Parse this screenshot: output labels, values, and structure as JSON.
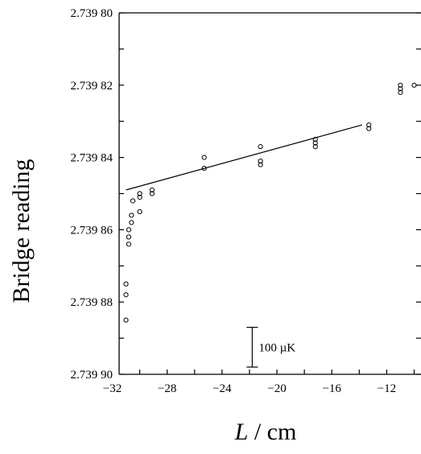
{
  "chart_data": {
    "type": "scatter",
    "xlabel_italic": "L",
    "xlabel_rest": " / cm",
    "ylabel": "Bridge reading",
    "xlim": [
      -31.5,
      -9.5
    ],
    "ylim": [
      2.7398,
      2.7399
    ],
    "y_inverted": true,
    "grid": false,
    "x_ticks": [
      {
        "value": -32,
        "label": "−32"
      },
      {
        "value": -28,
        "label": "−28"
      },
      {
        "value": -24,
        "label": "−24"
      },
      {
        "value": -20,
        "label": "−20"
      },
      {
        "value": -16,
        "label": "−16"
      },
      {
        "value": -12,
        "label": "−12"
      }
    ],
    "y_ticks": [
      {
        "value": 2.7398,
        "label": "2.739 80"
      },
      {
        "value": 2.73982,
        "label": "2.739 82"
      },
      {
        "value": 2.73984,
        "label": "2.739 84"
      },
      {
        "value": 2.73986,
        "label": "2.739 86"
      },
      {
        "value": 2.73988,
        "label": "2.739 88"
      },
      {
        "value": 2.7399,
        "label": "2.739 90"
      }
    ],
    "points": [
      {
        "x": -31.0,
        "y": 2.739875
      },
      {
        "x": -31.0,
        "y": 2.739878
      },
      {
        "x": -31.0,
        "y": 2.739885
      },
      {
        "x": -30.8,
        "y": 2.739864
      },
      {
        "x": -30.8,
        "y": 2.739862
      },
      {
        "x": -30.8,
        "y": 2.73986
      },
      {
        "x": -30.6,
        "y": 2.739858
      },
      {
        "x": -30.6,
        "y": 2.739856
      },
      {
        "x": -30.5,
        "y": 2.739852
      },
      {
        "x": -30.0,
        "y": 2.739855
      },
      {
        "x": -30.0,
        "y": 2.739851
      },
      {
        "x": -30.0,
        "y": 2.73985
      },
      {
        "x": -29.1,
        "y": 2.73985
      },
      {
        "x": -29.1,
        "y": 2.739849
      },
      {
        "x": -25.3,
        "y": 2.739843
      },
      {
        "x": -25.3,
        "y": 2.73984
      },
      {
        "x": -21.2,
        "y": 2.739842
      },
      {
        "x": -21.2,
        "y": 2.739841
      },
      {
        "x": -21.2,
        "y": 2.739837
      },
      {
        "x": -17.2,
        "y": 2.739837
      },
      {
        "x": -17.2,
        "y": 2.739836
      },
      {
        "x": -17.2,
        "y": 2.739835
      },
      {
        "x": -13.3,
        "y": 2.739832
      },
      {
        "x": -13.3,
        "y": 2.739831
      },
      {
        "x": -11.0,
        "y": 2.73982
      },
      {
        "x": -11.0,
        "y": 2.739821
      },
      {
        "x": -11.0,
        "y": 2.739822
      },
      {
        "x": -10.0,
        "y": 2.73982
      }
    ],
    "fit_line": {
      "x1": -31.0,
      "y1": 2.739849,
      "x2": -13.8,
      "y2": 2.739831
    },
    "scale_bar": {
      "x": -21.8,
      "y_top": 2.739887,
      "y_bottom": 2.739898,
      "label": "100 µK"
    }
  }
}
